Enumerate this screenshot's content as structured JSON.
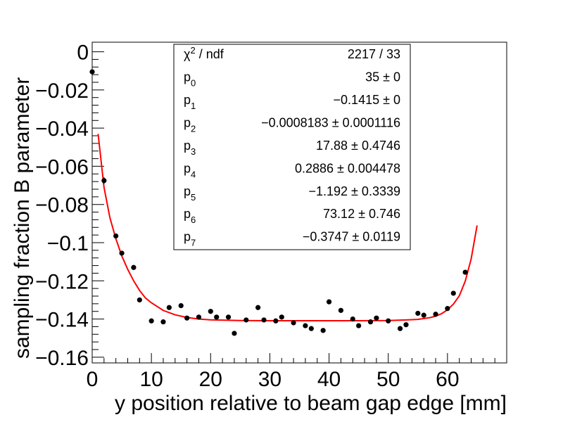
{
  "chart_data": {
    "type": "scatter",
    "xlabel": "y position relative to beam gap edge [mm]",
    "ylabel": "sampling fraction B parameter",
    "xlim": [
      0,
      70
    ],
    "ylim": [
      -0.163,
      0.005
    ],
    "x_ticks": [
      0,
      10,
      20,
      30,
      40,
      50,
      60
    ],
    "x_tick_labels": [
      "0",
      "10",
      "20",
      "30",
      "40",
      "50",
      "60"
    ],
    "y_ticks": [
      0,
      -0.02,
      -0.04,
      -0.06,
      -0.08,
      -0.1,
      -0.12,
      -0.14,
      -0.16
    ],
    "y_tick_labels": [
      "0",
      "−0.02",
      "−0.04",
      "−0.06",
      "−0.08",
      "−0.1",
      "−0.12",
      "−0.14",
      "−0.16"
    ],
    "grid": false,
    "legend": "none",
    "series": [
      {
        "kind": "points",
        "color": "#000000",
        "x": [
          0,
          2,
          4,
          5,
          7,
          8,
          10,
          12,
          13,
          15,
          16,
          18,
          20,
          21,
          23,
          24,
          26,
          28,
          29,
          31,
          32,
          34,
          36,
          37,
          39,
          40,
          42,
          44,
          45,
          47,
          48,
          50,
          52,
          53,
          55,
          56,
          58,
          60,
          61,
          63
        ],
        "y": [
          -0.0105,
          -0.0675,
          -0.0965,
          -0.1055,
          -0.113,
          -0.13,
          -0.141,
          -0.1415,
          -0.134,
          -0.133,
          -0.1395,
          -0.139,
          -0.136,
          -0.139,
          -0.139,
          -0.1475,
          -0.1405,
          -0.134,
          -0.1405,
          -0.141,
          -0.139,
          -0.142,
          -0.1435,
          -0.145,
          -0.146,
          -0.131,
          -0.1355,
          -0.14,
          -0.1435,
          -0.1415,
          -0.1395,
          -0.141,
          -0.145,
          -0.143,
          -0.137,
          -0.138,
          -0.1375,
          -0.1345,
          -0.1265,
          -0.1155
        ],
        "y_err": [
          0.002,
          0.0018,
          0.0012,
          0.001,
          0.001,
          0.0008,
          0.0008,
          0.0008,
          0.0007,
          0.0007,
          0.0007,
          0.0007,
          0.0007,
          0.0007,
          0.0007,
          0.0007,
          0.0007,
          0.0007,
          0.0007,
          0.0007,
          0.0007,
          0.0007,
          0.0007,
          0.0007,
          0.0007,
          0.0007,
          0.0007,
          0.0007,
          0.0007,
          0.0007,
          0.0007,
          0.0007,
          0.0007,
          0.0007,
          0.0007,
          0.0007,
          0.0008,
          0.0008,
          0.001,
          0.0012
        ]
      },
      {
        "kind": "fit-line",
        "color": "#ff0000",
        "x": [
          1,
          2,
          3,
          4,
          5,
          6,
          7,
          8,
          9,
          10,
          12,
          14,
          16,
          18,
          20,
          25,
          30,
          35,
          40,
          45,
          50,
          53,
          55,
          57,
          58,
          59,
          60,
          61,
          62,
          63,
          64,
          65
        ],
        "y": [
          -0.043,
          -0.071,
          -0.087,
          -0.098,
          -0.107,
          -0.114,
          -0.12,
          -0.125,
          -0.129,
          -0.1315,
          -0.1355,
          -0.1378,
          -0.1392,
          -0.14,
          -0.1404,
          -0.1408,
          -0.1409,
          -0.1409,
          -0.1409,
          -0.1409,
          -0.1408,
          -0.1405,
          -0.1402,
          -0.1393,
          -0.1385,
          -0.1372,
          -0.1352,
          -0.1322,
          -0.1278,
          -0.1202,
          -0.1085,
          -0.091
        ]
      }
    ],
    "stats_box": {
      "rows": [
        {
          "name": "χ",
          "sup": "2",
          "sub": "",
          "suffix": " / ndf",
          "value": "2217 / 33"
        },
        {
          "name": "p",
          "sup": "",
          "sub": "0",
          "suffix": "",
          "value": "35 ±     0"
        },
        {
          "name": "p",
          "sup": "",
          "sub": "1",
          "suffix": "",
          "value": "−0.1415 ±     0"
        },
        {
          "name": "p",
          "sup": "",
          "sub": "2",
          "suffix": "",
          "value": "−0.0008183 ± 0.0001116"
        },
        {
          "name": "p",
          "sup": "",
          "sub": "3",
          "suffix": "",
          "value": "17.88 ± 0.4746"
        },
        {
          "name": "p",
          "sup": "",
          "sub": "4",
          "suffix": "",
          "value": "0.2886 ± 0.004478"
        },
        {
          "name": "p",
          "sup": "",
          "sub": "5",
          "suffix": "",
          "value": "−1.192 ± 0.3339"
        },
        {
          "name": "p",
          "sup": "",
          "sub": "6",
          "suffix": "",
          "value": "73.12 ± 0.746"
        },
        {
          "name": "p",
          "sup": "",
          "sub": "7",
          "suffix": "",
          "value": "−0.3747 ± 0.0119"
        }
      ]
    }
  }
}
